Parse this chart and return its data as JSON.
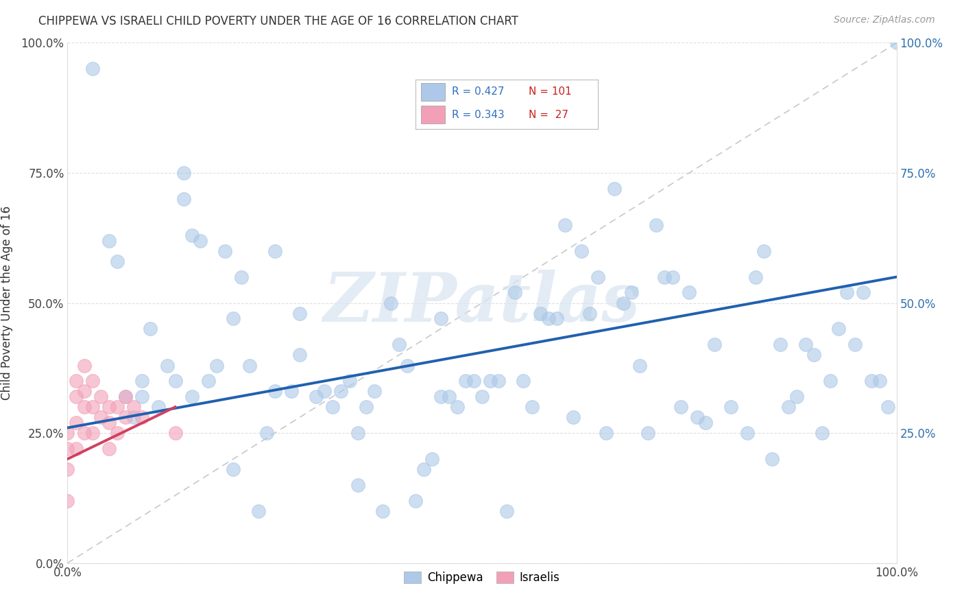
{
  "title": "CHIPPEWA VS ISRAELI CHILD POVERTY UNDER THE AGE OF 16 CORRELATION CHART",
  "source": "Source: ZipAtlas.com",
  "ylabel": "Child Poverty Under the Age of 16",
  "ytick_labels": [
    "0.0%",
    "25.0%",
    "50.0%",
    "75.0%",
    "100.0%"
  ],
  "ytick_values": [
    0.0,
    0.25,
    0.5,
    0.75,
    1.0
  ],
  "xtick_labels": [
    "0.0%",
    "100.0%"
  ],
  "xtick_values": [
    0.0,
    1.0
  ],
  "right_ytick_labels": [
    "100.0%",
    "75.0%",
    "50.0%",
    "25.0%"
  ],
  "right_ytick_values": [
    1.0,
    0.75,
    0.5,
    0.25
  ],
  "legend_chippewa_r": "R = 0.427",
  "legend_chippewa_n": "N = 101",
  "legend_israelis_r": "R = 0.343",
  "legend_israelis_n": "N =  27",
  "chippewa_color": "#adc8e8",
  "israelis_color": "#f2a0b8",
  "chippewa_line_color": "#2060b0",
  "israelis_line_color": "#d04060",
  "diagonal_color": "#c8c8c8",
  "background_color": "#ffffff",
  "grid_color": "#e0e0e0",
  "watermark_color": "#d8e4f0",
  "watermark": "ZIPatlas",
  "legend_r_color": "#3070c0",
  "legend_n_color": "#cc2020",
  "chippewa_x": [
    0.03,
    0.05,
    0.06,
    0.07,
    0.08,
    0.09,
    0.09,
    0.1,
    0.11,
    0.12,
    0.13,
    0.14,
    0.14,
    0.15,
    0.15,
    0.16,
    0.17,
    0.18,
    0.19,
    0.2,
    0.21,
    0.22,
    0.23,
    0.24,
    0.25,
    0.25,
    0.27,
    0.28,
    0.3,
    0.31,
    0.32,
    0.33,
    0.34,
    0.35,
    0.36,
    0.37,
    0.38,
    0.39,
    0.4,
    0.41,
    0.42,
    0.43,
    0.44,
    0.45,
    0.46,
    0.47,
    0.48,
    0.49,
    0.5,
    0.51,
    0.52,
    0.53,
    0.54,
    0.55,
    0.56,
    0.57,
    0.58,
    0.59,
    0.6,
    0.61,
    0.62,
    0.63,
    0.64,
    0.65,
    0.66,
    0.67,
    0.68,
    0.69,
    0.7,
    0.71,
    0.72,
    0.73,
    0.74,
    0.75,
    0.76,
    0.77,
    0.78,
    0.8,
    0.82,
    0.83,
    0.84,
    0.85,
    0.86,
    0.87,
    0.88,
    0.89,
    0.9,
    0.91,
    0.92,
    0.93,
    0.94,
    0.95,
    0.96,
    0.97,
    0.98,
    0.99,
    1.0,
    0.28,
    0.35,
    0.45,
    0.2
  ],
  "chippewa_y": [
    0.95,
    0.62,
    0.58,
    0.32,
    0.28,
    0.35,
    0.32,
    0.45,
    0.3,
    0.38,
    0.35,
    0.75,
    0.7,
    0.63,
    0.32,
    0.62,
    0.35,
    0.38,
    0.6,
    0.18,
    0.55,
    0.38,
    0.1,
    0.25,
    0.33,
    0.6,
    0.33,
    0.48,
    0.32,
    0.33,
    0.3,
    0.33,
    0.35,
    0.25,
    0.3,
    0.33,
    0.1,
    0.5,
    0.42,
    0.38,
    0.12,
    0.18,
    0.2,
    0.32,
    0.32,
    0.3,
    0.35,
    0.35,
    0.32,
    0.35,
    0.35,
    0.1,
    0.52,
    0.35,
    0.3,
    0.48,
    0.47,
    0.47,
    0.65,
    0.28,
    0.6,
    0.48,
    0.55,
    0.25,
    0.72,
    0.5,
    0.52,
    0.38,
    0.25,
    0.65,
    0.55,
    0.55,
    0.3,
    0.52,
    0.28,
    0.27,
    0.42,
    0.3,
    0.25,
    0.55,
    0.6,
    0.2,
    0.42,
    0.3,
    0.32,
    0.42,
    0.4,
    0.25,
    0.35,
    0.45,
    0.52,
    0.42,
    0.52,
    0.35,
    0.35,
    0.3,
    1.0,
    0.4,
    0.15,
    0.47,
    0.47
  ],
  "israelis_x": [
    0.0,
    0.0,
    0.0,
    0.0,
    0.01,
    0.01,
    0.01,
    0.01,
    0.02,
    0.02,
    0.02,
    0.02,
    0.03,
    0.03,
    0.03,
    0.04,
    0.04,
    0.05,
    0.05,
    0.05,
    0.06,
    0.06,
    0.07,
    0.07,
    0.08,
    0.09,
    0.13
  ],
  "israelis_y": [
    0.12,
    0.18,
    0.22,
    0.25,
    0.22,
    0.27,
    0.32,
    0.35,
    0.25,
    0.3,
    0.33,
    0.38,
    0.25,
    0.3,
    0.35,
    0.28,
    0.32,
    0.22,
    0.27,
    0.3,
    0.25,
    0.3,
    0.28,
    0.32,
    0.3,
    0.28,
    0.25
  ],
  "chip_line_x0": 0.0,
  "chip_line_y0": 0.26,
  "chip_line_x1": 1.0,
  "chip_line_y1": 0.55,
  "isr_line_x0": 0.0,
  "isr_line_y0": 0.2,
  "isr_line_x1": 0.13,
  "isr_line_y1": 0.3
}
